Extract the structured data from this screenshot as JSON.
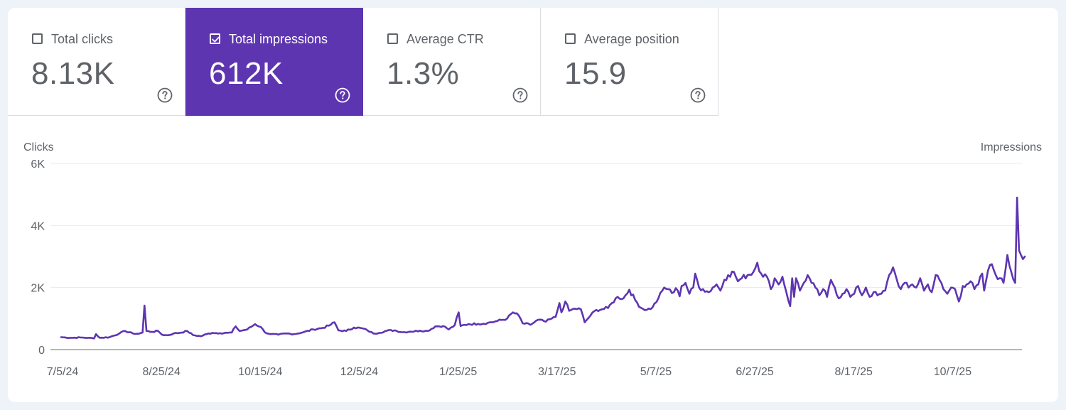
{
  "metrics": [
    {
      "label": "Total clicks",
      "value": "8.13K",
      "checked": false
    },
    {
      "label": "Total impressions",
      "value": "612K",
      "checked": true
    },
    {
      "label": "Average CTR",
      "value": "1.3%",
      "checked": false
    },
    {
      "label": "Average position",
      "value": "15.9",
      "checked": false
    }
  ],
  "colors": {
    "accent": "#5e35b1",
    "series": "#5e35b1",
    "text": "#5f6368",
    "grid": "#e8eaed"
  },
  "chart_data": {
    "type": "line",
    "title": "",
    "ylabel_left": "Clicks",
    "ylabel_right": "Impressions",
    "y_ticks": [
      "0",
      "2K",
      "4K",
      "6K"
    ],
    "ylim": [
      0,
      6000
    ],
    "x_tick_labels": [
      "7/5/24",
      "8/25/24",
      "10/15/24",
      "12/5/24",
      "1/25/25",
      "3/17/25",
      "5/7/25",
      "6/27/25",
      "8/17/25",
      "10/7/25"
    ],
    "x_tick_positions_days": [
      0,
      51,
      102,
      153,
      204,
      255,
      306,
      357,
      408,
      459
    ],
    "xlim_days": [
      0,
      490
    ],
    "series": [
      {
        "name": "Total impressions",
        "anchors": [
          [
            0,
            400
          ],
          [
            5,
            380
          ],
          [
            10,
            390
          ],
          [
            14,
            380
          ],
          [
            17,
            360
          ],
          [
            18,
            500
          ],
          [
            20,
            380
          ],
          [
            25,
            400
          ],
          [
            30,
            520
          ],
          [
            33,
            600
          ],
          [
            37,
            520
          ],
          [
            40,
            510
          ],
          [
            42,
            550
          ],
          [
            43,
            1420
          ],
          [
            44,
            600
          ],
          [
            47,
            570
          ],
          [
            50,
            600
          ],
          [
            52,
            480
          ],
          [
            55,
            460
          ],
          [
            58,
            520
          ],
          [
            62,
            550
          ],
          [
            65,
            600
          ],
          [
            68,
            470
          ],
          [
            72,
            430
          ],
          [
            75,
            500
          ],
          [
            78,
            540
          ],
          [
            82,
            530
          ],
          [
            86,
            540
          ],
          [
            88,
            550
          ],
          [
            90,
            750
          ],
          [
            92,
            600
          ],
          [
            96,
            650
          ],
          [
            100,
            820
          ],
          [
            103,
            730
          ],
          [
            105,
            560
          ],
          [
            108,
            500
          ],
          [
            112,
            480
          ],
          [
            116,
            520
          ],
          [
            120,
            500
          ],
          [
            125,
            560
          ],
          [
            130,
            650
          ],
          [
            135,
            700
          ],
          [
            139,
            800
          ],
          [
            141,
            880
          ],
          [
            143,
            620
          ],
          [
            147,
            600
          ],
          [
            151,
            710
          ],
          [
            155,
            690
          ],
          [
            158,
            620
          ],
          [
            161,
            520
          ],
          [
            164,
            540
          ],
          [
            168,
            610
          ],
          [
            172,
            620
          ],
          [
            176,
            560
          ],
          [
            180,
            580
          ],
          [
            185,
            610
          ],
          [
            189,
            600
          ],
          [
            193,
            750
          ],
          [
            197,
            760
          ],
          [
            200,
            650
          ],
          [
            203,
            790
          ],
          [
            205,
            1200
          ],
          [
            206,
            760
          ],
          [
            210,
            820
          ],
          [
            215,
            830
          ],
          [
            220,
            860
          ],
          [
            225,
            920
          ],
          [
            230,
            1000
          ],
          [
            233,
            1200
          ],
          [
            236,
            1100
          ],
          [
            238,
            850
          ],
          [
            242,
            800
          ],
          [
            246,
            960
          ],
          [
            250,
            900
          ],
          [
            253,
            1000
          ],
          [
            255,
            1050
          ],
          [
            257,
            1500
          ],
          [
            258,
            1200
          ],
          [
            260,
            1550
          ],
          [
            262,
            1250
          ],
          [
            265,
            1320
          ],
          [
            268,
            1300
          ],
          [
            270,
            880
          ],
          [
            273,
            1100
          ],
          [
            276,
            1280
          ],
          [
            279,
            1300
          ],
          [
            282,
            1340
          ],
          [
            284,
            1500
          ],
          [
            287,
            1700
          ],
          [
            290,
            1650
          ],
          [
            293,
            1930
          ],
          [
            296,
            1600
          ],
          [
            299,
            1350
          ],
          [
            302,
            1280
          ],
          [
            305,
            1360
          ],
          [
            308,
            1650
          ],
          [
            311,
            2000
          ],
          [
            313,
            1950
          ],
          [
            315,
            1820
          ],
          [
            317,
            1980
          ],
          [
            318,
            1900
          ],
          [
            319,
            1720
          ],
          [
            320,
            2050
          ],
          [
            322,
            2150
          ],
          [
            324,
            1800
          ],
          [
            326,
            2000
          ],
          [
            327,
            2450
          ],
          [
            329,
            2000
          ],
          [
            331,
            1950
          ],
          [
            334,
            1850
          ],
          [
            336,
            2000
          ],
          [
            338,
            2100
          ],
          [
            340,
            1900
          ],
          [
            342,
            2250
          ],
          [
            344,
            2400
          ],
          [
            347,
            2500
          ],
          [
            349,
            2200
          ],
          [
            351,
            2300
          ],
          [
            354,
            2400
          ],
          [
            357,
            2500
          ],
          [
            359,
            2800
          ],
          [
            361,
            2450
          ],
          [
            364,
            2350
          ],
          [
            366,
            1950
          ],
          [
            368,
            2300
          ],
          [
            370,
            2100
          ],
          [
            372,
            2350
          ],
          [
            374,
            1850
          ],
          [
            376,
            1400
          ],
          [
            377,
            2300
          ],
          [
            378,
            1700
          ],
          [
            379,
            2300
          ],
          [
            381,
            1900
          ],
          [
            383,
            2150
          ],
          [
            385,
            2400
          ],
          [
            387,
            2150
          ],
          [
            389,
            2000
          ],
          [
            391,
            1750
          ],
          [
            393,
            1950
          ],
          [
            395,
            1700
          ],
          [
            397,
            2250
          ],
          [
            399,
            2000
          ],
          [
            401,
            1650
          ],
          [
            403,
            1800
          ],
          [
            405,
            1950
          ],
          [
            407,
            1700
          ],
          [
            409,
            1800
          ],
          [
            411,
            2050
          ],
          [
            413,
            1750
          ],
          [
            415,
            2000
          ],
          [
            417,
            1700
          ],
          [
            419,
            1850
          ],
          [
            421,
            1750
          ],
          [
            423,
            1800
          ],
          [
            425,
            1900
          ],
          [
            427,
            2400
          ],
          [
            429,
            2650
          ],
          [
            431,
            2250
          ],
          [
            433,
            1950
          ],
          [
            435,
            2150
          ],
          [
            437,
            2000
          ],
          [
            439,
            2100
          ],
          [
            441,
            2000
          ],
          [
            443,
            2300
          ],
          [
            445,
            1900
          ],
          [
            447,
            2100
          ],
          [
            449,
            1850
          ],
          [
            451,
            2400
          ],
          [
            453,
            2250
          ],
          [
            455,
            1950
          ],
          [
            457,
            1800
          ],
          [
            459,
            2000
          ],
          [
            461,
            1950
          ],
          [
            463,
            1550
          ],
          [
            465,
            2050
          ],
          [
            467,
            2100
          ],
          [
            469,
            2200
          ],
          [
            471,
            1950
          ],
          [
            473,
            2100
          ],
          [
            475,
            2450
          ],
          [
            476,
            1900
          ],
          [
            478,
            2550
          ],
          [
            480,
            2750
          ],
          [
            482,
            2400
          ],
          [
            484,
            2300
          ],
          [
            486,
            2150
          ],
          [
            488,
            3050
          ],
          [
            490,
            2500
          ],
          [
            492,
            2150
          ],
          [
            493,
            4900
          ],
          [
            494,
            3200
          ],
          [
            495,
            3050
          ],
          [
            497,
            3000
          ]
        ]
      }
    ]
  }
}
